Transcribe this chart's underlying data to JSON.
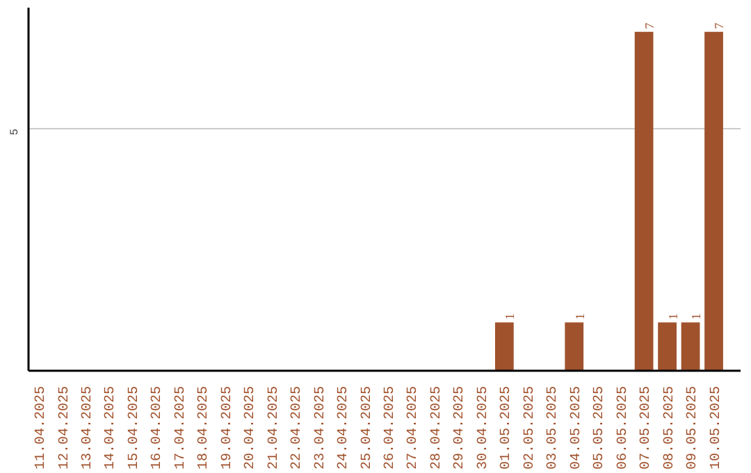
{
  "chart_data": {
    "type": "bar",
    "categories": [
      "11.04.2025",
      "12.04.2025",
      "13.04.2025",
      "14.04.2025",
      "15.04.2025",
      "16.04.2025",
      "17.04.2025",
      "18.04.2025",
      "19.04.2025",
      "20.04.2025",
      "21.04.2025",
      "22.04.2025",
      "23.04.2025",
      "24.04.2025",
      "25.04.2025",
      "26.04.2025",
      "27.04.2025",
      "28.04.2025",
      "29.04.2025",
      "30.04.2025",
      "01.05.2025",
      "02.05.2025",
      "03.05.2025",
      "04.05.2025",
      "05.05.2025",
      "06.05.2025",
      "07.05.2025",
      "08.05.2025",
      "09.05.2025",
      "10.05.2025"
    ],
    "values": [
      null,
      null,
      null,
      null,
      null,
      null,
      null,
      null,
      null,
      null,
      null,
      null,
      null,
      null,
      null,
      null,
      null,
      null,
      null,
      null,
      1,
      null,
      null,
      1,
      null,
      null,
      7,
      1,
      1,
      7
    ],
    "data_labels": true,
    "color": "#a0522d",
    "ylim": [
      0,
      7.5
    ],
    "yticks": [
      5
    ],
    "grid": "y"
  }
}
